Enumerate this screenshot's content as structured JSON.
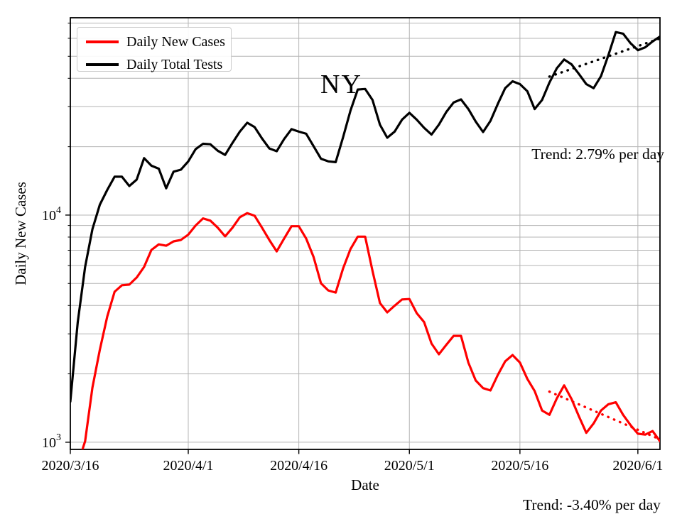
{
  "figure": {
    "background": "#ffffff",
    "grid_color": "#b4b4b4",
    "frame_color": "#000000"
  },
  "chart_data": {
    "type": "line",
    "title_annotation": "NY",
    "xlabel": "Date",
    "ylabel": "Daily New Cases",
    "y_scale": "log",
    "ylim": [
      930,
      73900
    ],
    "grid": "both",
    "legend_position": "upper-left",
    "x_ticks": [
      "2020/3/16",
      "2020/4/1",
      "2020/4/16",
      "2020/5/1",
      "2020/5/16",
      "2020/6/1"
    ],
    "y_ticks": [
      {
        "base": "10",
        "exp": "3",
        "value": 1000
      },
      {
        "base": "10",
        "exp": "4",
        "value": 10000
      }
    ],
    "dates": [
      "2020/3/16",
      "2020/3/17",
      "2020/3/18",
      "2020/3/19",
      "2020/3/20",
      "2020/3/21",
      "2020/3/22",
      "2020/3/23",
      "2020/3/24",
      "2020/3/25",
      "2020/3/26",
      "2020/3/27",
      "2020/3/28",
      "2020/3/29",
      "2020/3/30",
      "2020/3/31",
      "2020/4/1",
      "2020/4/2",
      "2020/4/3",
      "2020/4/4",
      "2020/4/5",
      "2020/4/6",
      "2020/4/7",
      "2020/4/8",
      "2020/4/9",
      "2020/4/10",
      "2020/4/11",
      "2020/4/12",
      "2020/4/13",
      "2020/4/14",
      "2020/4/15",
      "2020/4/16",
      "2020/4/17",
      "2020/4/18",
      "2020/4/19",
      "2020/4/20",
      "2020/4/21",
      "2020/4/22",
      "2020/4/23",
      "2020/4/24",
      "2020/4/25",
      "2020/4/26",
      "2020/4/27",
      "2020/4/28",
      "2020/4/29",
      "2020/4/30",
      "2020/5/1",
      "2020/5/2",
      "2020/5/3",
      "2020/5/4",
      "2020/5/5",
      "2020/5/6",
      "2020/5/7",
      "2020/5/8",
      "2020/5/9",
      "2020/5/10",
      "2020/5/11",
      "2020/5/12",
      "2020/5/13",
      "2020/5/14",
      "2020/5/15",
      "2020/5/16",
      "2020/5/17",
      "2020/5/18",
      "2020/5/19",
      "2020/5/20",
      "2020/5/21",
      "2020/5/22",
      "2020/5/23",
      "2020/5/24",
      "2020/5/25",
      "2020/5/26",
      "2020/5/27",
      "2020/5/28",
      "2020/5/29",
      "2020/5/30",
      "2020/5/31",
      "2020/6/1",
      "2020/6/2",
      "2020/6/3",
      "2020/6/4"
    ],
    "series": [
      {
        "name": "Daily New Cases",
        "color": "#ff0000",
        "values": [
          null,
          800,
          1010,
          1740,
          2550,
          3570,
          4600,
          4910,
          4940,
          5310,
          5910,
          7020,
          7430,
          7330,
          7660,
          7770,
          8200,
          9000,
          9670,
          9450,
          8800,
          8060,
          8800,
          9780,
          10200,
          9930,
          8800,
          7770,
          6920,
          7880,
          8930,
          8930,
          7880,
          6540,
          5010,
          4660,
          4560,
          5820,
          7080,
          8040,
          8040,
          5670,
          4100,
          3730,
          3990,
          4250,
          4270,
          3700,
          3380,
          2720,
          2440,
          2680,
          2940,
          2940,
          2240,
          1870,
          1730,
          1690,
          1980,
          2270,
          2420,
          2240,
          1900,
          1680,
          1380,
          1320,
          1560,
          1780,
          1550,
          1300,
          1100,
          1210,
          1380,
          1470,
          1500,
          1320,
          1190,
          1090,
          1080,
          1120,
          1010
        ]
      },
      {
        "name": "Daily Total Tests",
        "color": "#000000",
        "values": [
          1510,
          3370,
          5910,
          8670,
          11100,
          12900,
          14750,
          14750,
          13430,
          14320,
          17800,
          16500,
          16000,
          13120,
          15530,
          15840,
          17240,
          19500,
          20600,
          20500,
          19200,
          18400,
          20800,
          23300,
          25500,
          24400,
          21750,
          19650,
          19100,
          21600,
          23900,
          23300,
          22800,
          20100,
          17700,
          17240,
          17100,
          22000,
          28800,
          35700,
          35900,
          32100,
          25000,
          21900,
          23300,
          26300,
          28200,
          26300,
          24200,
          22600,
          25000,
          28400,
          31300,
          32300,
          29300,
          25800,
          23200,
          26000,
          30900,
          36200,
          38800,
          37700,
          35100,
          29300,
          32100,
          38300,
          44300,
          48400,
          46100,
          41800,
          37700,
          36200,
          40900,
          50600,
          63900,
          62900,
          57100,
          53200,
          54800,
          58100,
          61100
        ]
      }
    ],
    "trend_lines": [
      {
        "series": "Daily New Cases",
        "label": "Trend: -3.40% per day",
        "rate_pct_per_day": -3.4,
        "color": "#ff0000",
        "style": "dotted",
        "start_date": "2020/5/20",
        "start_value": 1670,
        "end_date": "2020/6/4",
        "end_value": 1030
      },
      {
        "series": "Daily Total Tests",
        "label": "Trend: 2.79% per day",
        "rate_pct_per_day": 2.79,
        "color": "#000000",
        "style": "dotted",
        "start_date": "2020/5/20",
        "start_value": 40700,
        "end_date": "2020/6/4",
        "end_value": 59900
      }
    ]
  }
}
